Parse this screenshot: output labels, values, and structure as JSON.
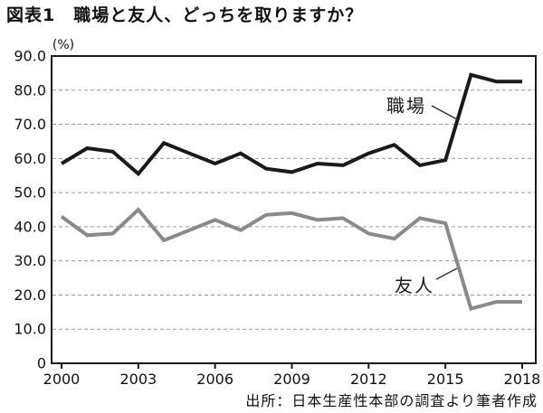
{
  "page": {
    "title": "図表1　職場と友人、どっちを取りますか？",
    "source": "出所：日本生産性本部の調査より筆者作成"
  },
  "chart_data": {
    "type": "line",
    "title": "図表1　職場と友人、どっちを取りますか？",
    "unit_label": "(%)",
    "xlabel": "",
    "ylabel": "(%)",
    "ylim": [
      0,
      90
    ],
    "grid": "horizontal dashed lines at every 10%",
    "legend_position": "inline callout labels with pointer lines",
    "x": [
      2000,
      2001,
      2002,
      2003,
      2004,
      2005,
      2006,
      2007,
      2008,
      2009,
      2010,
      2011,
      2012,
      2013,
      2014,
      2015,
      2016,
      2017,
      2018
    ],
    "x_tick_labels": [
      "2000",
      "2003",
      "2006",
      "2009",
      "2012",
      "2015",
      "2018"
    ],
    "y_tick_labels": [
      "90.0",
      "80.0",
      "70.0",
      "60.0",
      "50.0",
      "40.0",
      "30.0",
      "20.0",
      "10.0",
      "0"
    ],
    "series": [
      {
        "name": "職場",
        "color": "#1a1a1a",
        "values": [
          58.5,
          63,
          62,
          55.5,
          64.5,
          61.5,
          58.5,
          61.5,
          57,
          56,
          58.5,
          58,
          61.5,
          64,
          58,
          59.5,
          84.5,
          82.5,
          82.5
        ]
      },
      {
        "name": "友人",
        "color": "#8a8a8a",
        "values": [
          43,
          37.5,
          38,
          45,
          36,
          39,
          42,
          39,
          43.5,
          44,
          42,
          42.5,
          38,
          36.5,
          42.5,
          41,
          16,
          18,
          18
        ]
      }
    ],
    "source": "出所：日本生産性本部の調査より筆者作成"
  }
}
